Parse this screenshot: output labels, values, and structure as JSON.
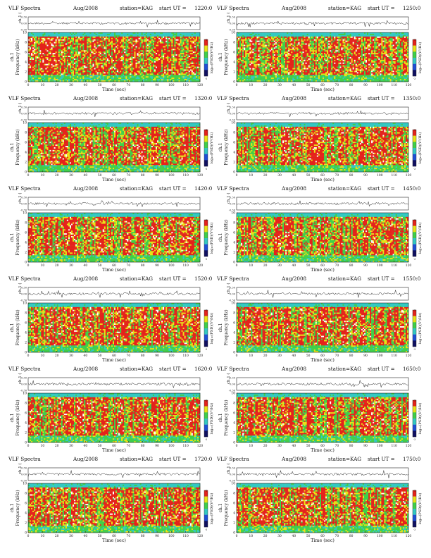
{
  "page": {
    "title": "VLF Spectra",
    "date": "Aug/2008",
    "station": "station=KAG",
    "ut_prefix": "start UT ="
  },
  "colors": {
    "background": "#ffffff",
    "spec_red": "#e4221b",
    "spec_yellow": "#e9e217",
    "spec_green": "#3fcf49",
    "spec_cyan": "#32c9c2",
    "spec_blue": "#1f4fd6",
    "trace": "#222222"
  },
  "labels": {
    "ch_label": "ch.1 (V)",
    "freq_label_left": "ch.1",
    "freq_label": "Frequency (kHz)",
    "time_label": "Time (sec)",
    "colorbar_label": "log₁₀(PSD)(V²/Hz)",
    "colorbar_ticks": [
      "-1",
      "-3"
    ]
  },
  "panels": [
    {
      "start_ut": "1220:0"
    },
    {
      "start_ut": "1250:0"
    },
    {
      "start_ut": "1320:0"
    },
    {
      "start_ut": "1350:0"
    },
    {
      "start_ut": "1420:0"
    },
    {
      "start_ut": "1450:0"
    },
    {
      "start_ut": "1520:0"
    },
    {
      "start_ut": "1550:0"
    },
    {
      "start_ut": "1620:0"
    },
    {
      "start_ut": "1650:0"
    },
    {
      "start_ut": "1720:0"
    },
    {
      "start_ut": "1750:0"
    }
  ],
  "chart_data": {
    "type": "heatmap",
    "title": "VLF Spectra",
    "xlabel": "Time (sec)",
    "ylabel": "Frequency (kHz)",
    "xlim": [
      0,
      120
    ],
    "ylim": [
      0,
      10
    ],
    "x_ticks": [
      0,
      10,
      20,
      30,
      40,
      50,
      60,
      70,
      80,
      90,
      100,
      110,
      120
    ],
    "y_ticks": [
      0,
      2,
      4,
      6,
      8,
      10
    ],
    "waveform_ylim": [
      -0.3,
      0.3
    ],
    "waveform_ticks": [
      "0.30",
      "0.00",
      "-0.30"
    ],
    "colorbar": {
      "label": "log10(PSD)(V^2/Hz)",
      "ticks": [
        "-1",
        "-3"
      ],
      "colors": [
        "#e4221b",
        "#e9e217",
        "#3fcf49",
        "#32c9c2",
        "#1f4fd6",
        "#101060"
      ]
    },
    "bands": [
      {
        "from_khz": 0,
        "to_khz": 1.4,
        "dominant": "green-cyan"
      },
      {
        "from_khz": 1.4,
        "to_khz": 9.1,
        "dominant": "red-yellow"
      },
      {
        "from_khz": 9.1,
        "to_khz": 10,
        "dominant": "cyan"
      }
    ],
    "panel_count": 12,
    "layout": "6 rows x 2 columns"
  }
}
